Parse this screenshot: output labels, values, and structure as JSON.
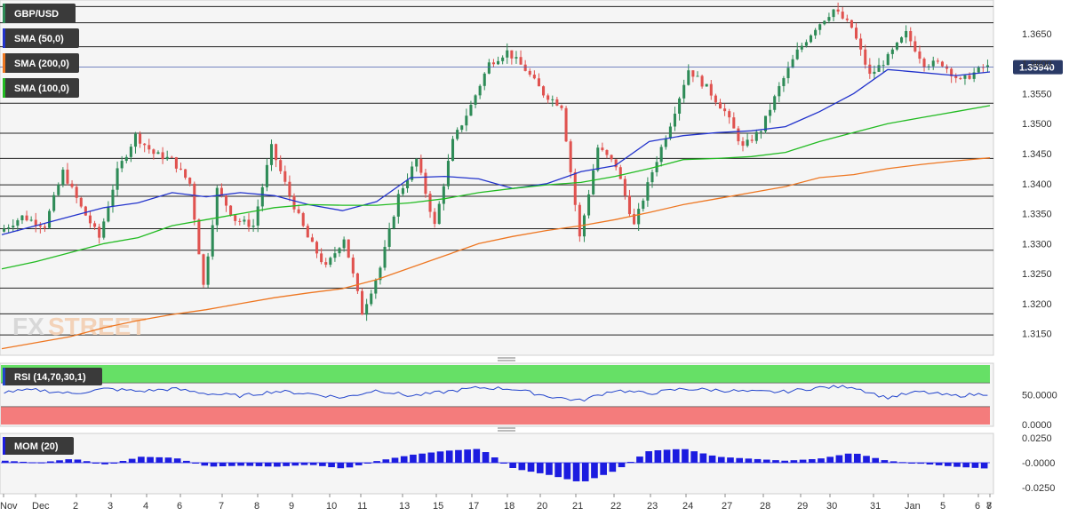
{
  "symbol": "GBP/USD",
  "logo": {
    "part1": "FX",
    "part2": "STREET"
  },
  "current_price_label": "1.35940",
  "colors": {
    "up": "#2e8b57",
    "down": "#e0524f",
    "sma50": "#2233cc",
    "sma200": "#ee7722",
    "sma100": "#22bb22",
    "rsi_line": "#2244cc",
    "rsi_overbought": "#66e066",
    "rsi_oversold": "#f47c7c",
    "mom_bar": "#1c1ce0",
    "label_bg": "#3a3a3a",
    "price_tag": "#2a3a66"
  },
  "legend": [
    {
      "label": "GBP/USD",
      "color": "#2e8b57"
    },
    {
      "label": "SMA (50,0)",
      "color": "#2233cc"
    },
    {
      "label": "SMA (200,0)",
      "color": "#ee7722"
    },
    {
      "label": "SMA (100,0)",
      "color": "#22bb22"
    }
  ],
  "chart_data": [
    {
      "type": "candlestick",
      "title": "GBP/USD",
      "ylim": [
        1.312,
        1.37
      ],
      "y_ticks": [
        "1.3650",
        "1.3600",
        "1.3550",
        "1.3500",
        "1.3450",
        "1.3400",
        "1.3350",
        "1.3300",
        "1.3250",
        "1.3200",
        "1.3150"
      ],
      "x_tick_labels": [
        "Nov",
        "Dec",
        "2",
        "3",
        "4",
        "6",
        "7",
        "8",
        "9",
        "10",
        "11",
        "13",
        "15",
        "17",
        "18",
        "20",
        "21",
        "22",
        "23",
        "24",
        "27",
        "28",
        "29",
        "30",
        "31",
        "Jan",
        "5",
        "6",
        "7",
        "8"
      ],
      "horizontal_levels": [
        1.3695,
        1.3668,
        1.3628,
        1.3534,
        1.3484,
        1.3442,
        1.3398,
        1.3379,
        1.3325,
        1.3289,
        1.3226,
        1.3183,
        1.3148
      ],
      "candles_count": 218,
      "last_close": 1.3594,
      "series": [
        {
          "name": "SMA (50,0)",
          "values": [
            1.3315,
            1.333,
            1.3345,
            1.336,
            1.3368,
            1.3385,
            1.3378,
            1.3385,
            1.338,
            1.3365,
            1.3355,
            1.337,
            1.341,
            1.3412,
            1.3408,
            1.3392,
            1.34,
            1.342,
            1.343,
            1.347,
            1.348,
            1.3485,
            1.3488,
            1.3495,
            1.352,
            1.355,
            1.359,
            1.3585,
            1.358,
            1.3586
          ]
        },
        {
          "name": "SMA (100,0)",
          "values": [
            1.3258,
            1.327,
            1.3285,
            1.33,
            1.331,
            1.333,
            1.334,
            1.335,
            1.336,
            1.3365,
            1.3364,
            1.3364,
            1.3368,
            1.3375,
            1.3385,
            1.3392,
            1.3398,
            1.3402,
            1.3412,
            1.3425,
            1.344,
            1.3442,
            1.3445,
            1.3452,
            1.347,
            1.3485,
            1.35,
            1.351,
            1.352,
            1.353
          ]
        },
        {
          "name": "SMA (200,0)",
          "values": [
            1.3125,
            1.3135,
            1.3145,
            1.316,
            1.3172,
            1.3182,
            1.319,
            1.32,
            1.321,
            1.3218,
            1.3225,
            1.324,
            1.326,
            1.328,
            1.33,
            1.3312,
            1.3322,
            1.333,
            1.334,
            1.3352,
            1.3365,
            1.3375,
            1.3385,
            1.3395,
            1.341,
            1.3415,
            1.3425,
            1.3432,
            1.3438,
            1.3443
          ]
        }
      ]
    },
    {
      "type": "line",
      "title": "RSI (14,70,30,1)",
      "ylim": [
        0,
        100
      ],
      "y_ticks": [
        "50.0000",
        "0.0000"
      ],
      "overbought": 70,
      "oversold": 30,
      "series": [
        {
          "name": "RSI (14,70,30,1)",
          "values": [
            55,
            58,
            52,
            60,
            56,
            60,
            52,
            48,
            56,
            52,
            45,
            58,
            48,
            55,
            62,
            60,
            48,
            40,
            58,
            52,
            60,
            58,
            55,
            55,
            62,
            64,
            45,
            55,
            48,
            52
          ]
        }
      ]
    },
    {
      "type": "bar",
      "title": "MOM (20)",
      "ylim": [
        -0.03,
        0.03
      ],
      "y_ticks": [
        "0.0250",
        "-0.0000",
        "-0.0250"
      ],
      "series": [
        {
          "name": "MOM (20)",
          "values": [
            0.002,
            0.0,
            0.004,
            -0.002,
            0.006,
            0.005,
            -0.004,
            -0.003,
            -0.004,
            -0.002,
            -0.006,
            0.002,
            0.008,
            0.012,
            0.014,
            -0.006,
            -0.012,
            -0.02,
            -0.008,
            0.012,
            0.014,
            0.006,
            0.004,
            0.002,
            0.004,
            0.01,
            0.002,
            -0.001,
            -0.004,
            -0.006
          ]
        }
      ]
    }
  ]
}
